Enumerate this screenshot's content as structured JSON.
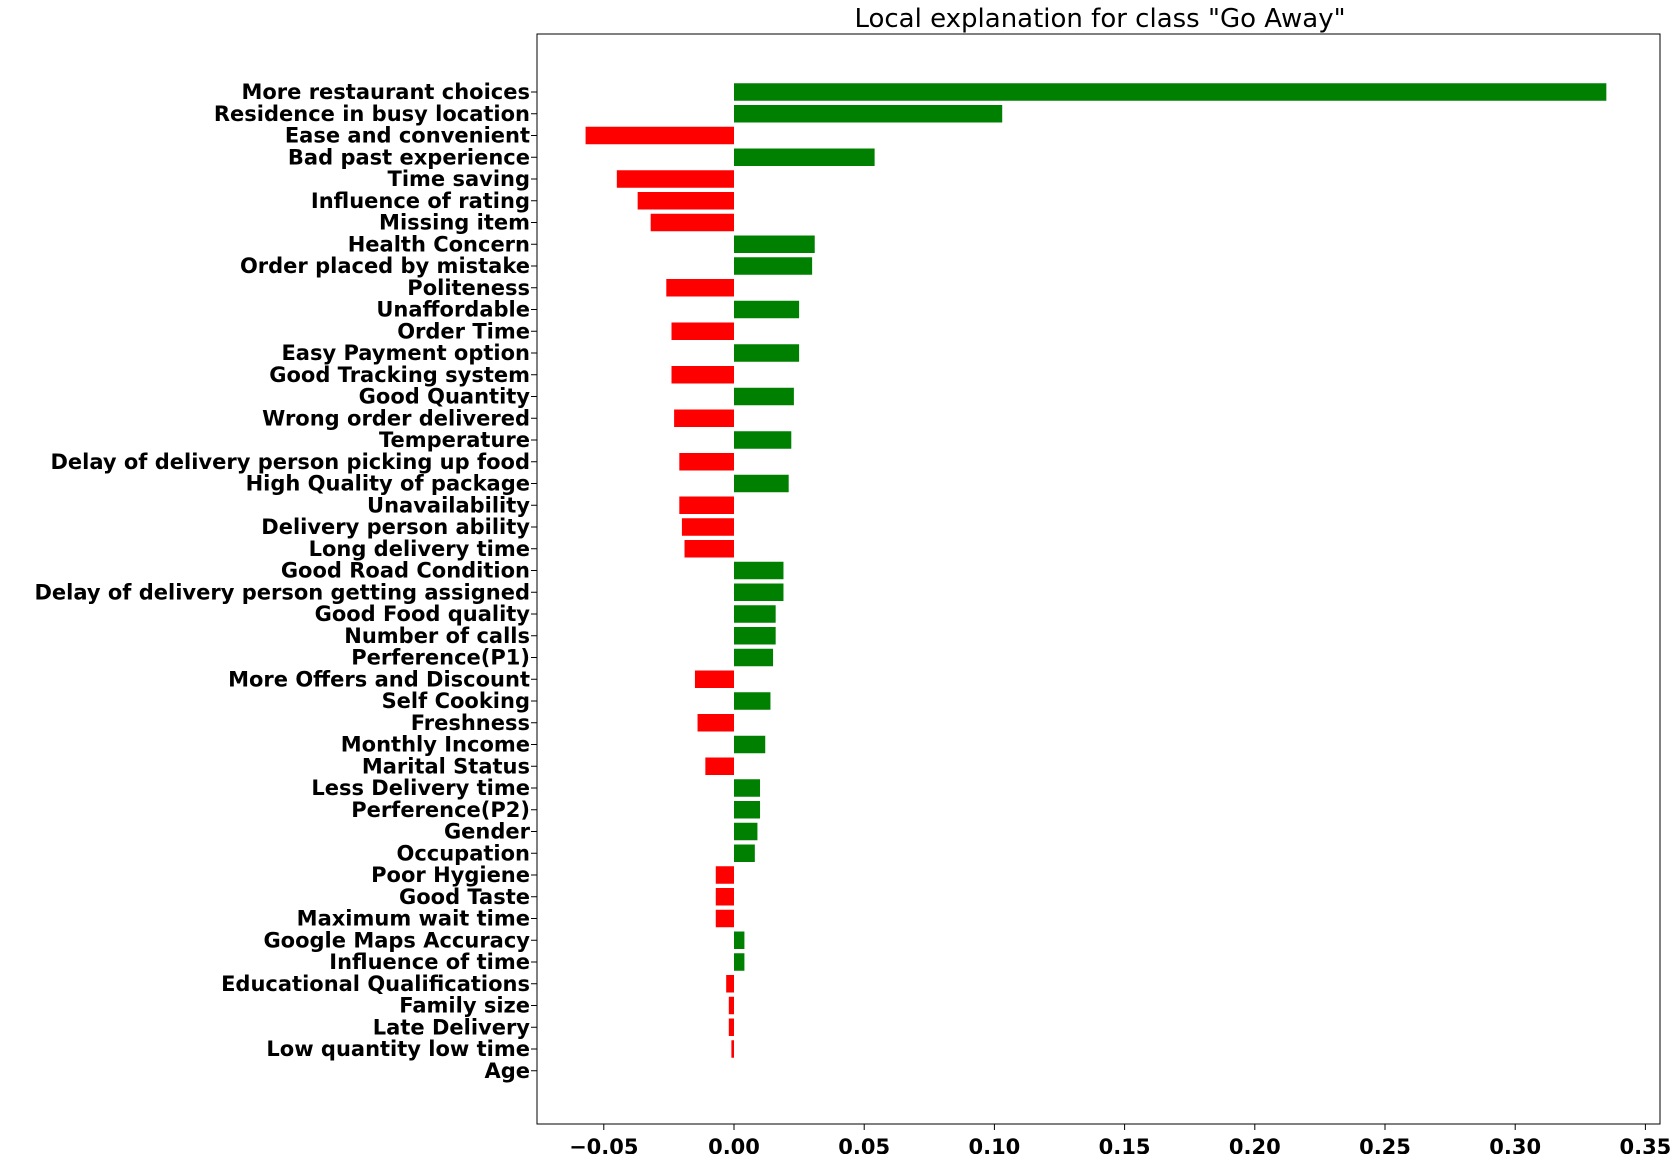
{
  "chart_data": {
    "type": "bar",
    "orientation": "horizontal",
    "title": "Local explanation for class \"Go Away\"",
    "xlabel": "",
    "ylabel": "",
    "xlim": [
      -0.075,
      0.35
    ],
    "xticks": [
      -0.05,
      0.0,
      0.05,
      0.1,
      0.15,
      0.2,
      0.25,
      0.3,
      0.35
    ],
    "xtick_labels": [
      "−0.05",
      "0.00",
      "0.05",
      "0.10",
      "0.15",
      "0.20",
      "0.25",
      "0.30",
      "0.35"
    ],
    "grid": false,
    "colors": {
      "positive": "#008000",
      "negative": "#ff0000"
    },
    "categories": [
      "More restaurant choices",
      "Residence in busy location",
      "Ease and convenient",
      "Bad past experience",
      "Time saving",
      "Influence of rating",
      "Missing item",
      "Health Concern",
      "Order placed by mistake",
      "Politeness",
      "Unaffordable",
      "Order Time",
      "Easy Payment option",
      "Good Tracking system",
      "Good Quantity",
      "Wrong order delivered",
      "Temperature",
      "Delay of delivery person picking up food",
      "High Quality of package",
      "Unavailability",
      "Delivery person ability",
      "Long delivery time",
      "Good Road Condition",
      "Delay of delivery person getting assigned",
      "Good Food quality",
      "Number of calls",
      "Perference(P1)",
      "More Offers and Discount",
      "Self Cooking",
      "Freshness ",
      "Monthly Income",
      "Marital Status",
      "Less Delivery time",
      "Perference(P2)",
      "Gender",
      "Occupation",
      "Poor Hygiene",
      "Good Taste ",
      "Maximum wait time",
      "Google Maps Accuracy",
      "Influence of time",
      "Educational Qualifications",
      "Family size",
      "Late Delivery",
      "Low quantity low time",
      "Age"
    ],
    "values": [
      0.335,
      0.103,
      -0.057,
      0.054,
      -0.045,
      -0.037,
      -0.032,
      0.031,
      0.03,
      -0.026,
      0.025,
      -0.024,
      0.025,
      -0.024,
      0.023,
      -0.023,
      0.022,
      -0.021,
      0.021,
      -0.021,
      -0.02,
      -0.019,
      0.019,
      0.019,
      0.016,
      0.016,
      0.015,
      -0.015,
      0.014,
      -0.014,
      0.012,
      -0.011,
      0.01,
      0.01,
      0.009,
      0.008,
      -0.007,
      -0.007,
      -0.007,
      0.004,
      0.004,
      -0.003,
      -0.002,
      -0.002,
      -0.001,
      0.0
    ]
  }
}
